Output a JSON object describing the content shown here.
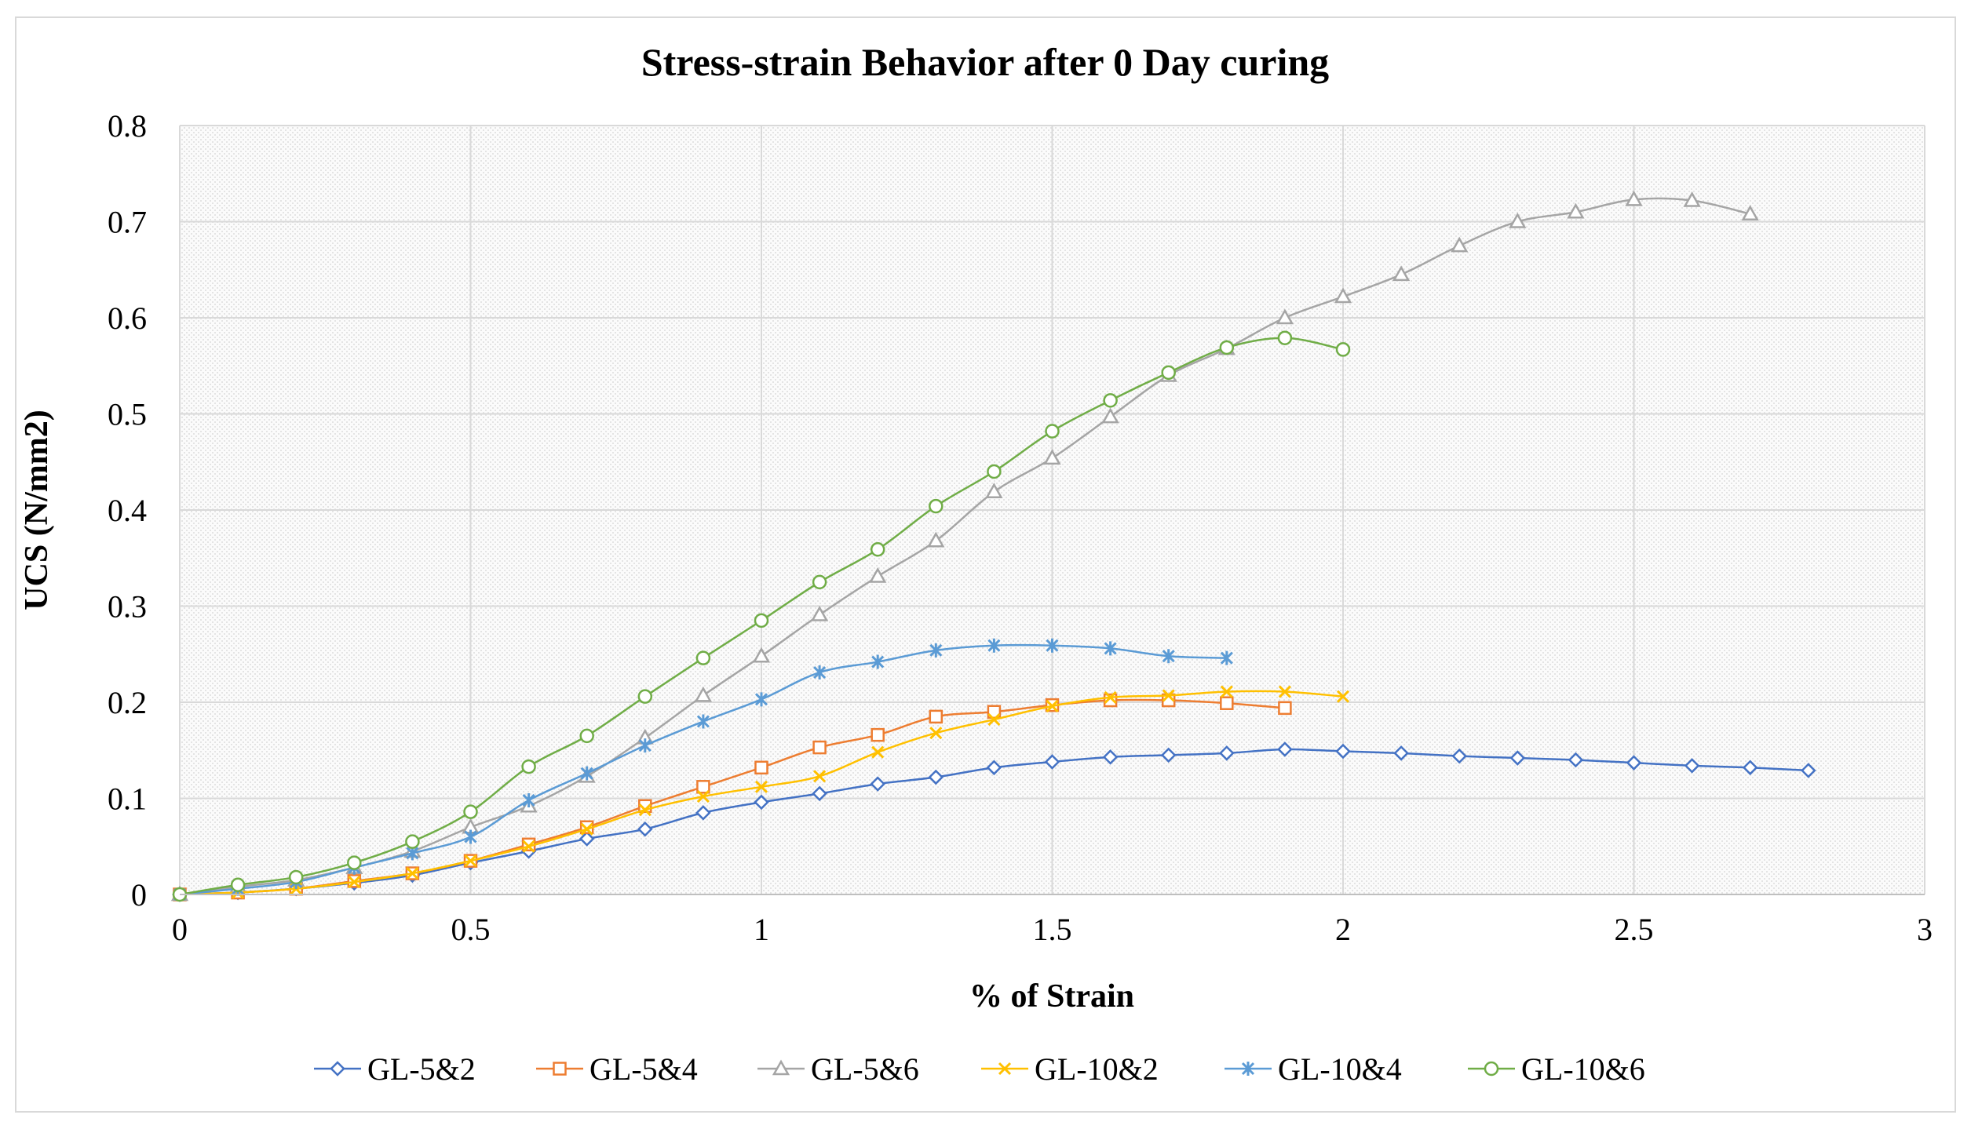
{
  "chart_data": {
    "type": "line",
    "title": "Stress-strain Behavior after 0 Day curing",
    "xlabel": "% of Strain",
    "ylabel": "UCS (N/mm2)",
    "xlim": [
      0,
      3
    ],
    "ylim": [
      0,
      0.8
    ],
    "xticks": [
      "0",
      "0.5",
      "1",
      "1.5",
      "2",
      "2.5",
      "3"
    ],
    "yticks": [
      "0",
      "0.1",
      "0.2",
      "0.3",
      "0.4",
      "0.5",
      "0.6",
      "0.7",
      "0.8"
    ],
    "grid": true,
    "legend_position": "bottom",
    "series": [
      {
        "name": "GL-5&2",
        "color": "#4472C4",
        "marker": "diamond",
        "x": [
          0,
          0.1,
          0.2,
          0.3,
          0.4,
          0.5,
          0.6,
          0.7,
          0.8,
          0.9,
          1.0,
          1.1,
          1.2,
          1.3,
          1.4,
          1.5,
          1.6,
          1.7,
          1.8,
          1.9,
          2.0,
          2.1,
          2.2,
          2.3,
          2.4,
          2.5,
          2.6,
          2.7,
          2.8
        ],
        "y": [
          0,
          0.002,
          0.006,
          0.012,
          0.02,
          0.033,
          0.045,
          0.058,
          0.068,
          0.085,
          0.096,
          0.105,
          0.115,
          0.122,
          0.132,
          0.138,
          0.143,
          0.145,
          0.147,
          0.151,
          0.149,
          0.147,
          0.144,
          0.142,
          0.14,
          0.137,
          0.134,
          0.132,
          0.129
        ]
      },
      {
        "name": "GL-5&4",
        "color": "#ED7D31",
        "marker": "square",
        "x": [
          0,
          0.1,
          0.2,
          0.3,
          0.4,
          0.5,
          0.6,
          0.7,
          0.8,
          0.9,
          1.0,
          1.1,
          1.2,
          1.3,
          1.4,
          1.5,
          1.6,
          1.7,
          1.8,
          1.9
        ],
        "y": [
          0,
          0.002,
          0.006,
          0.014,
          0.022,
          0.035,
          0.052,
          0.07,
          0.092,
          0.112,
          0.132,
          0.153,
          0.166,
          0.185,
          0.19,
          0.197,
          0.202,
          0.202,
          0.199,
          0.194
        ]
      },
      {
        "name": "GL-5&6",
        "color": "#A5A5A5",
        "marker": "triangle",
        "x": [
          0,
          0.1,
          0.2,
          0.3,
          0.4,
          0.5,
          0.6,
          0.7,
          0.8,
          0.9,
          1.0,
          1.1,
          1.2,
          1.3,
          1.4,
          1.5,
          1.6,
          1.7,
          1.8,
          1.9,
          2.0,
          2.1,
          2.2,
          2.3,
          2.4,
          2.5,
          2.6,
          2.7
        ],
        "y": [
          0,
          0.008,
          0.015,
          0.028,
          0.045,
          0.07,
          0.092,
          0.123,
          0.163,
          0.207,
          0.248,
          0.291,
          0.331,
          0.368,
          0.419,
          0.454,
          0.497,
          0.54,
          0.568,
          0.6,
          0.622,
          0.645,
          0.675,
          0.7,
          0.71,
          0.723,
          0.722,
          0.708
        ]
      },
      {
        "name": "GL-10&2",
        "color": "#FFC000",
        "marker": "x",
        "x": [
          0,
          0.1,
          0.2,
          0.3,
          0.4,
          0.5,
          0.6,
          0.7,
          0.8,
          0.9,
          1.0,
          1.1,
          1.2,
          1.3,
          1.4,
          1.5,
          1.6,
          1.7,
          1.8,
          1.9,
          2.0
        ],
        "y": [
          0,
          0.002,
          0.006,
          0.013,
          0.022,
          0.035,
          0.05,
          0.068,
          0.088,
          0.102,
          0.112,
          0.123,
          0.148,
          0.168,
          0.182,
          0.196,
          0.205,
          0.207,
          0.211,
          0.211,
          0.206
        ]
      },
      {
        "name": "GL-10&4",
        "color": "#5B9BD5",
        "marker": "star",
        "x": [
          0,
          0.1,
          0.2,
          0.3,
          0.4,
          0.5,
          0.6,
          0.7,
          0.8,
          0.9,
          1.0,
          1.1,
          1.2,
          1.3,
          1.4,
          1.5,
          1.6,
          1.7,
          1.8
        ],
        "y": [
          0,
          0.006,
          0.013,
          0.028,
          0.043,
          0.06,
          0.098,
          0.126,
          0.155,
          0.18,
          0.203,
          0.231,
          0.242,
          0.254,
          0.259,
          0.259,
          0.256,
          0.248,
          0.246
        ]
      },
      {
        "name": "GL-10&6",
        "color": "#70AD47",
        "marker": "circle",
        "x": [
          0,
          0.1,
          0.2,
          0.3,
          0.4,
          0.5,
          0.6,
          0.7,
          0.8,
          0.9,
          1.0,
          1.1,
          1.2,
          1.3,
          1.4,
          1.5,
          1.6,
          1.7,
          1.8,
          1.9,
          2.0
        ],
        "y": [
          0,
          0.01,
          0.018,
          0.033,
          0.055,
          0.086,
          0.133,
          0.165,
          0.206,
          0.246,
          0.285,
          0.325,
          0.359,
          0.404,
          0.44,
          0.482,
          0.514,
          0.543,
          0.569,
          0.579,
          0.567
        ]
      }
    ]
  }
}
